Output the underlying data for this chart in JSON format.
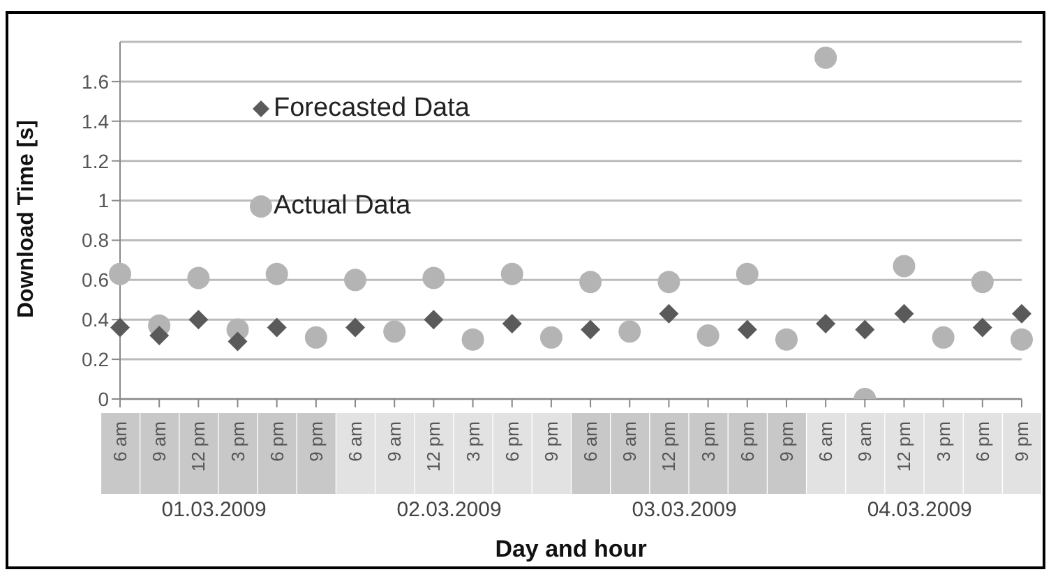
{
  "chart_data": {
    "type": "scatter",
    "xlabel": "Day and hour",
    "ylabel": "Download Time [s]",
    "categories": [
      "6 am",
      "9 am",
      "12 pm",
      "3 pm",
      "6 pm",
      "9 pm",
      "6 am",
      "9 am",
      "12 pm",
      "3 pm",
      "6 pm",
      "9 pm",
      "6 am",
      "9 am",
      "12 pm",
      "3 pm",
      "6 pm",
      "9 pm",
      "6 am",
      "9 am",
      "12 pm",
      "3 pm",
      "6 pm",
      "9 pm"
    ],
    "annotations": [
      "01.03.2009",
      "02.03.2009",
      "03.03.2009",
      "04.03.2009"
    ],
    "series": [
      {
        "name": "Forecasted Data",
        "color": "#5a5a5a",
        "marker": "diamond",
        "values": [
          0.36,
          0.32,
          0.4,
          0.29,
          0.36,
          null,
          0.36,
          null,
          0.4,
          null,
          0.38,
          null,
          0.35,
          null,
          0.43,
          null,
          0.35,
          null,
          0.38,
          0.35,
          0.43,
          null,
          0.36,
          0.43
        ]
      },
      {
        "name": "Actual Data",
        "color": "#b4b4b4",
        "marker": "circle",
        "values": [
          0.63,
          0.37,
          0.61,
          0.35,
          0.63,
          0.31,
          0.6,
          0.34,
          0.61,
          0.3,
          0.63,
          0.31,
          0.59,
          0.34,
          0.59,
          0.32,
          0.63,
          0.3,
          1.72,
          0.0,
          0.67,
          0.31,
          0.59,
          0.3
        ]
      }
    ],
    "ylim": [
      0,
      1.8
    ],
    "yticks": [
      0,
      0.2,
      0.4,
      0.6,
      0.8,
      1,
      1.2,
      1.4,
      1.6
    ],
    "grid": "y",
    "legend": "top left"
  }
}
